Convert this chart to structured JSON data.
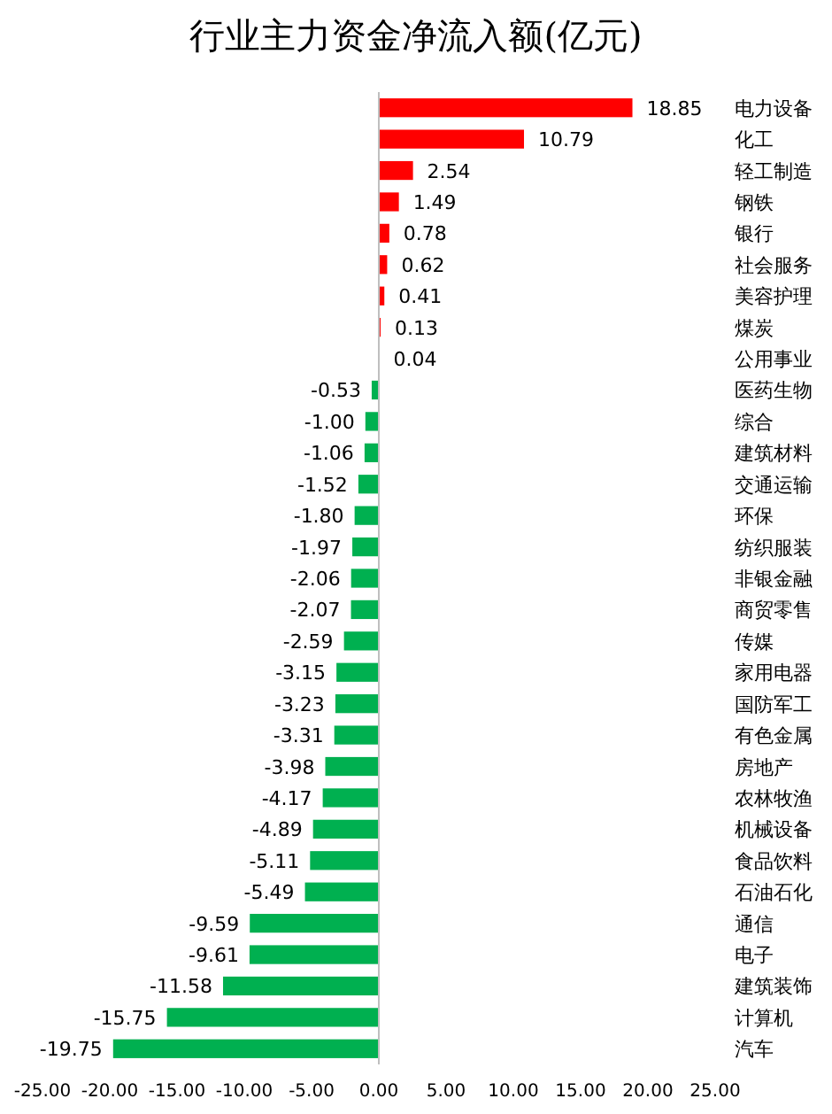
{
  "chart_data": {
    "type": "bar",
    "orientation": "horizontal",
    "title": "行业主力资金净流入额(亿元)",
    "categories": [
      "电力设备",
      "化工",
      "轻工制造",
      "钢铁",
      "银行",
      "社会服务",
      "美容护理",
      "煤炭",
      "公用事业",
      "医药生物",
      "综合",
      "建筑材料",
      "交通运输",
      "环保",
      "纺织服装",
      "非银金融",
      "商贸零售",
      "传媒",
      "家用电器",
      "国防军工",
      "有色金属",
      "房地产",
      "农林牧渔",
      "机械设备",
      "食品饮料",
      "石油石化",
      "通信",
      "电子",
      "建筑装饰",
      "计算机",
      "汽车"
    ],
    "values": [
      18.85,
      10.79,
      2.54,
      1.49,
      0.78,
      0.62,
      0.41,
      0.13,
      0.04,
      -0.53,
      -1.0,
      -1.06,
      -1.52,
      -1.8,
      -1.97,
      -2.06,
      -2.07,
      -2.59,
      -3.15,
      -3.23,
      -3.31,
      -3.98,
      -4.17,
      -4.89,
      -5.11,
      -5.49,
      -9.59,
      -9.61,
      -11.58,
      -15.75,
      -19.75
    ],
    "value_labels": [
      "18.85",
      "10.79",
      "2.54",
      "1.49",
      "0.78",
      "0.62",
      "0.41",
      "0.13",
      "0.04",
      "-0.53",
      "-1.00",
      "-1.06",
      "-1.52",
      "-1.80",
      "-1.97",
      "-2.06",
      "-2.07",
      "-2.59",
      "-3.15",
      "-3.23",
      "-3.31",
      "-3.98",
      "-4.17",
      "-4.89",
      "-5.11",
      "-5.49",
      "-9.59",
      "-9.61",
      "-11.58",
      "-15.75",
      "-19.75"
    ],
    "colors": [
      "#ff0000",
      "#ff0000",
      "#ff0000",
      "#ff0000",
      "#ff0000",
      "#ff0000",
      "#ff0000",
      "#ff0000",
      "#ff0000",
      "#00b050",
      "#00b050",
      "#00b050",
      "#00b050",
      "#00b050",
      "#00b050",
      "#00b050",
      "#00b050",
      "#00b050",
      "#00b050",
      "#00b050",
      "#00b050",
      "#00b050",
      "#00b050",
      "#00b050",
      "#00b050",
      "#00b050",
      "#00b050",
      "#00b050",
      "#00b050",
      "#00b050",
      "#00b050"
    ],
    "xlim": [
      -25,
      25
    ],
    "xticks": [
      {
        "value": -25,
        "label": "-25.00"
      },
      {
        "value": -20,
        "label": "-20.00"
      },
      {
        "value": -15,
        "label": "-15.00"
      },
      {
        "value": -10,
        "label": "-10.00"
      },
      {
        "value": -5,
        "label": "-5.00"
      },
      {
        "value": 0,
        "label": "0.00"
      },
      {
        "value": 5,
        "label": "5.00"
      },
      {
        "value": 10,
        "label": "10.00"
      },
      {
        "value": 15,
        "label": "15.00"
      },
      {
        "value": 20,
        "label": "20.00"
      },
      {
        "value": 25,
        "label": "25.00"
      }
    ],
    "tick_labels": "x"
  }
}
